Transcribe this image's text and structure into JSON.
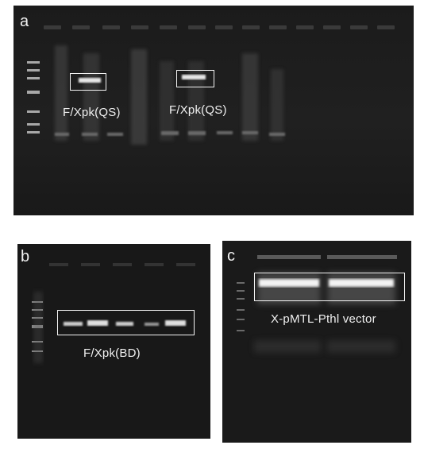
{
  "figure": {
    "panels": [
      {
        "letter": "a",
        "labels": [
          "F/Xpk(QS)",
          "F/Xpk(QS)"
        ]
      },
      {
        "letter": "b",
        "labels": [
          "F/Xpk(BD)"
        ]
      },
      {
        "letter": "c",
        "labels": [
          "X-pMTL-Pthl vector"
        ]
      }
    ]
  }
}
